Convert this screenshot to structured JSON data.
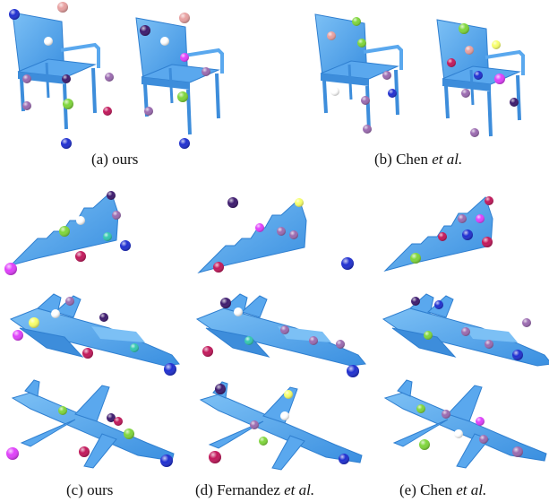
{
  "figure": {
    "captions": {
      "a": {
        "label": "(a) ours"
      },
      "b": {
        "label": "(b) Chen ",
        "em": "et al."
      },
      "c": {
        "label": "(c) ours"
      },
      "d": {
        "label": "(d) Fernandez ",
        "em": "et al."
      },
      "e": {
        "label": "(e) Chen ",
        "em": "et al."
      }
    },
    "colors": {
      "shape_fill": "#4a9ee8",
      "shape_light": "#7cc0f5",
      "shape_dark": "#2f7fd0",
      "keypoint_palette": [
        "#1f2fd0",
        "#c2185b",
        "#7fd63a",
        "#e040fb",
        "#3d1a6e",
        "#9b6ab0",
        "#e8a0a0",
        "#33c8b0",
        "#f7ff6a",
        "#ffffff"
      ]
    }
  }
}
